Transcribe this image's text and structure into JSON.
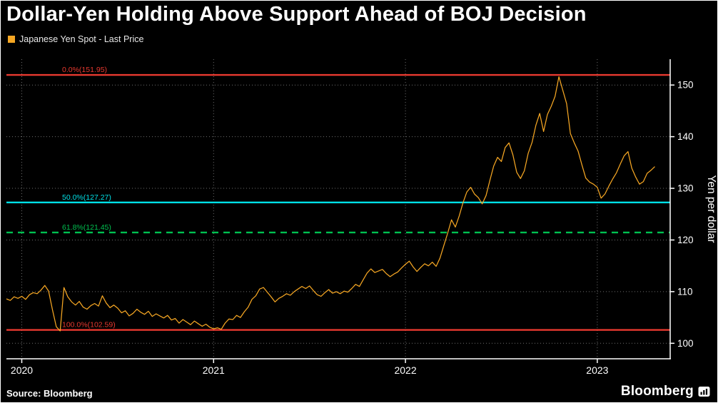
{
  "title": "Dollar-Yen Holding Above Support Ahead of BOJ Decision",
  "legend": {
    "label": "Japanese Yen Spot - Last Price",
    "marker_color": "#f5a623"
  },
  "footer": {
    "source": "Source: Bloomberg",
    "brand": "Bloomberg"
  },
  "icons": {
    "legend_marker": "orange-square-swatch",
    "brand_mark": "bloomberg-terminal-icon"
  },
  "colors": {
    "background": "#000000",
    "text": "#ffffff",
    "grid": "#6e6e6e",
    "axis": "#ffffff",
    "series": "#f5a623",
    "fib_red": "#e8392f",
    "fib_cyan": "#00e0e6",
    "fib_green": "#00c050"
  },
  "chart_data": {
    "type": "line",
    "title": "Dollar-Yen Holding Above Support Ahead of BOJ Decision",
    "ylabel": "Yen per dollar",
    "xlim": [
      2019.92,
      2023.38
    ],
    "ylim": [
      97,
      155
    ],
    "grid": true,
    "legend_position": "top-left",
    "axes": {
      "y_ticks": [
        100,
        110,
        120,
        130,
        140,
        150
      ],
      "x_ticks": [
        2020,
        2021,
        2022,
        2023
      ],
      "x_tick_labels": [
        "2020",
        "2021",
        "2022",
        "2023"
      ]
    },
    "reference_lines": [
      {
        "label": "0.0%(151.95)",
        "value": 151.95,
        "color": "#e8392f",
        "style": "solid"
      },
      {
        "label": "50.0%(127.27)",
        "value": 127.27,
        "color": "#00e0e6",
        "style": "solid"
      },
      {
        "label": "61.8%(121.45)",
        "value": 121.45,
        "color": "#00c050",
        "style": "dashed"
      },
      {
        "label": "100.0%(102.59)",
        "value": 102.59,
        "color": "#e8392f",
        "style": "solid"
      }
    ],
    "series": [
      {
        "name": "Japanese Yen Spot - Last Price",
        "color": "#f5a623",
        "x_start": 2019.92,
        "x_step": 0.02,
        "values": [
          108.6,
          108.3,
          109.0,
          108.7,
          109.1,
          108.5,
          109.4,
          109.8,
          109.6,
          110.3,
          111.2,
          110.1,
          106.5,
          103.2,
          102.4,
          110.8,
          109.0,
          108.0,
          107.4,
          108.1,
          107.0,
          106.6,
          107.3,
          107.7,
          107.2,
          109.2,
          107.8,
          106.9,
          107.4,
          106.8,
          105.9,
          106.3,
          105.3,
          105.8,
          106.6,
          106.0,
          105.6,
          106.2,
          105.2,
          105.7,
          105.3,
          104.9,
          105.4,
          104.5,
          104.8,
          103.9,
          104.6,
          104.1,
          103.6,
          104.3,
          103.8,
          103.3,
          103.7,
          103.1,
          102.8,
          103.0,
          102.7,
          103.9,
          104.7,
          104.6,
          105.4,
          105.0,
          106.1,
          107.0,
          108.5,
          109.2,
          110.5,
          110.8,
          109.9,
          109.0,
          108.0,
          108.7,
          109.1,
          109.6,
          109.3,
          110.0,
          110.5,
          111.0,
          110.6,
          111.1,
          110.2,
          109.4,
          109.1,
          109.8,
          110.4,
          109.7,
          110.0,
          109.6,
          110.1,
          109.9,
          110.6,
          111.4,
          111.0,
          112.3,
          113.6,
          114.4,
          113.7,
          114.0,
          114.3,
          113.5,
          112.9,
          113.4,
          113.8,
          114.6,
          115.3,
          115.9,
          114.8,
          113.9,
          114.7,
          115.4,
          115.0,
          115.7,
          114.9,
          116.5,
          118.9,
          121.3,
          123.9,
          122.5,
          124.6,
          127.2,
          129.3,
          130.2,
          128.9,
          128.2,
          127.0,
          128.6,
          131.5,
          134.3,
          136.0,
          135.2,
          137.9,
          138.8,
          136.5,
          133.1,
          131.9,
          133.4,
          136.8,
          138.9,
          142.2,
          144.5,
          141.0,
          144.3,
          145.9,
          147.8,
          151.6,
          149.0,
          146.4,
          140.6,
          138.8,
          137.2,
          134.5,
          132.0,
          131.2,
          130.8,
          130.2,
          128.1,
          128.9,
          130.4,
          131.8,
          133.0,
          134.7,
          136.3,
          137.1,
          133.9,
          132.2,
          130.8,
          131.3,
          132.9,
          133.5,
          134.2
        ]
      }
    ],
    "source": "Source: Bloomberg"
  }
}
